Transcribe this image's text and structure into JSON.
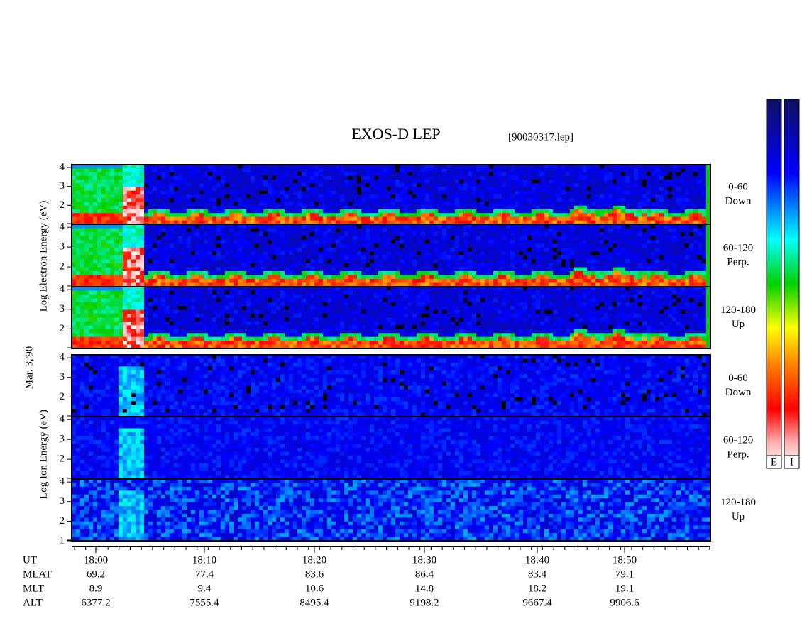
{
  "title": "EXOS-D LEP",
  "file": "[90030317.lep]",
  "electron_axis_label": "Log Electron Energy (eV)",
  "date": "Mar. 3,'90",
  "ion_axis_label": "Log Ion Energy (eV)",
  "ylim": [
    1,
    4.15
  ],
  "panels": [
    {
      "pitch": "0-60",
      "direction": "Down",
      "yticks": [
        2,
        3,
        4
      ]
    },
    {
      "pitch": "60-120",
      "direction": "Perp.",
      "yticks": [
        2,
        3,
        4
      ]
    },
    {
      "pitch": "120-180",
      "direction": "Up",
      "yticks": [
        2,
        3,
        4
      ]
    },
    {
      "pitch": "0-60",
      "direction": "Down",
      "yticks": [
        2,
        3,
        4
      ]
    },
    {
      "pitch": "60-120",
      "direction": "Perp.",
      "yticks": [
        2,
        3,
        4
      ]
    },
    {
      "pitch": "120-180",
      "direction": "Up",
      "yticks": [
        1,
        2,
        3,
        4
      ]
    }
  ],
  "colorbar_labels": [
    "E",
    "I"
  ],
  "ephemeris": {
    "rows": [
      {
        "name": "UT",
        "values": [
          "18:00",
          "18:10",
          "18:20",
          "18:30",
          "18:40",
          "18:50"
        ]
      },
      {
        "name": "MLAT",
        "values": [
          69.2,
          77.4,
          83.6,
          86.4,
          83.4,
          79.1
        ]
      },
      {
        "name": "MLT",
        "values": [
          8.9,
          9.4,
          10.6,
          14.8,
          18.2,
          19.1
        ]
      },
      {
        "name": "ALT",
        "values": [
          6377.2,
          7555.4,
          8495.4,
          9198.2,
          9667.4,
          9906.6
        ]
      }
    ]
  }
}
